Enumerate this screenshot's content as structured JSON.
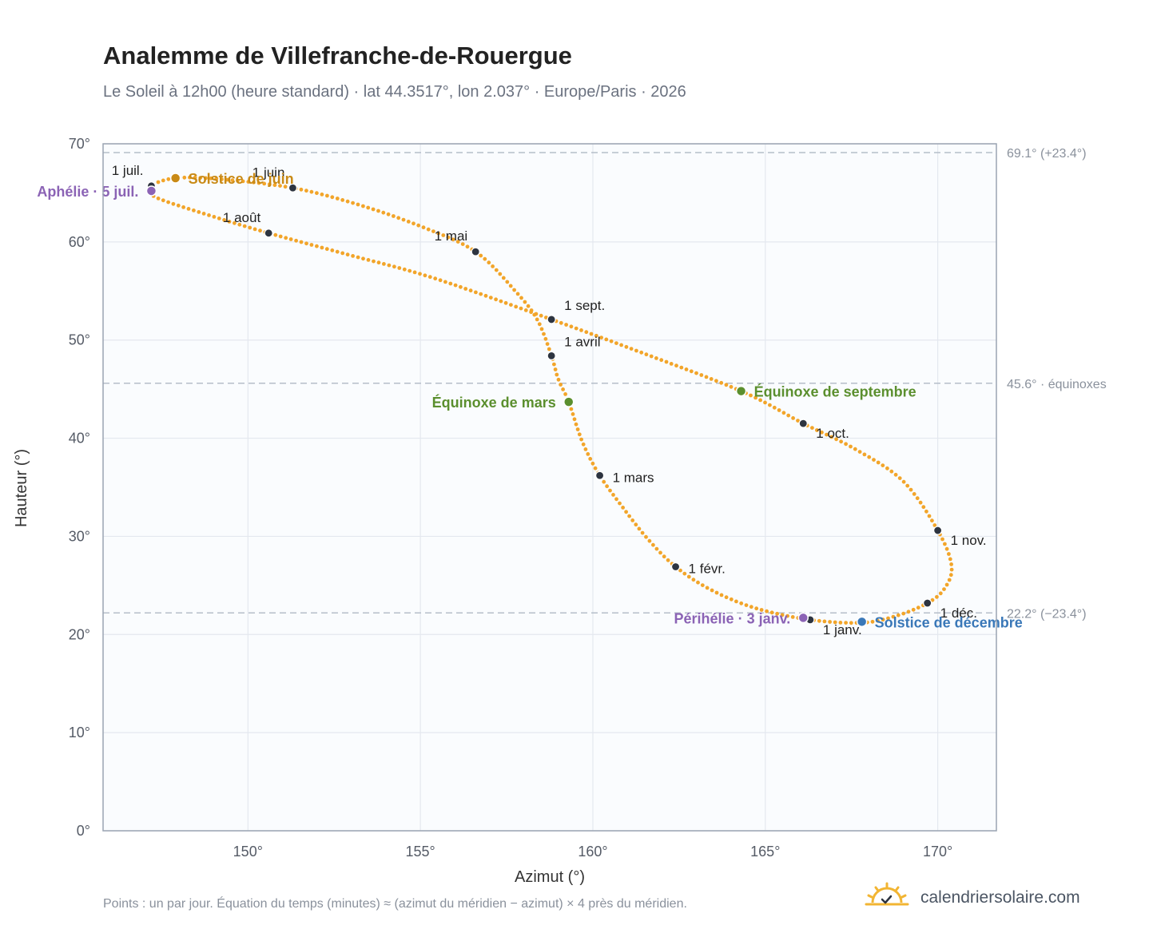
{
  "header": {
    "title": "Analemme de Villefranche-de-Rouergue",
    "subtitle": "Le Soleil à 12h00 (heure standard) · lat 44.3517°, lon 2.037° · Europe/Paris · 2026"
  },
  "footer": {
    "note": "Points : un par jour. Équation du temps (minutes) ≈ (azimut du méridien − azimut) × 4 près du méridien.",
    "brand": "calendriersolaire.com"
  },
  "colors": {
    "curve": "#f2a52a",
    "month_dot": "#2d3440",
    "equinox": "#5b8f2e",
    "june_solstice": "#c98a16",
    "december_solstice": "#3a78b8",
    "apsis": "#8b63b5",
    "grid": "#e4e8ef",
    "plot_bg": "#fafcfe",
    "ref_line": "#b5bec9"
  },
  "chart_data": {
    "type": "scatter",
    "xlabel": "Azimut (°)",
    "ylabel": "Hauteur (°)",
    "xlim": [
      145.8,
      171.7
    ],
    "ylim": [
      0,
      70
    ],
    "xticks": [
      {
        "value": 150,
        "label": "150°"
      },
      {
        "value": 155,
        "label": "155°"
      },
      {
        "value": 160,
        "label": "160°"
      },
      {
        "value": 165,
        "label": "165°"
      },
      {
        "value": 170,
        "label": "170°"
      }
    ],
    "yticks": [
      {
        "value": 0,
        "label": "0°"
      },
      {
        "value": 10,
        "label": "10°"
      },
      {
        "value": 20,
        "label": "20°"
      },
      {
        "value": 30,
        "label": "30°"
      },
      {
        "value": 40,
        "label": "40°"
      },
      {
        "value": 50,
        "label": "50°"
      },
      {
        "value": 60,
        "label": "60°"
      },
      {
        "value": 70,
        "label": "70°"
      }
    ],
    "grid": true,
    "reference_lines": [
      {
        "y": 69.1,
        "label": "69.1° (+23.4°)"
      },
      {
        "y": 45.6,
        "label": "45.6° · équinoxes"
      },
      {
        "y": 22.2,
        "label": "22.2° (−23.4°)"
      }
    ],
    "months": [
      {
        "label": "1 janv.",
        "x": 166.3,
        "y": 21.5,
        "label_side": "below-right"
      },
      {
        "label": "1 févr.",
        "x": 162.4,
        "y": 26.9,
        "label_side": "right"
      },
      {
        "label": "1 mars",
        "x": 160.2,
        "y": 36.2,
        "label_side": "right"
      },
      {
        "label": "1 avril",
        "x": 158.8,
        "y": 48.4,
        "label_side": "above-right"
      },
      {
        "label": "1 mai",
        "x": 156.6,
        "y": 59.0,
        "label_side": "above-left"
      },
      {
        "label": "1 juin",
        "x": 151.3,
        "y": 65.5,
        "label_side": "above-left"
      },
      {
        "label": "1 juil.",
        "x": 147.2,
        "y": 65.7,
        "label_side": "above-left"
      },
      {
        "label": "1 août",
        "x": 150.6,
        "y": 60.9,
        "label_side": "above-left"
      },
      {
        "label": "1 sept.",
        "x": 158.8,
        "y": 52.1,
        "label_side": "above-right"
      },
      {
        "label": "1 oct.",
        "x": 166.1,
        "y": 41.5,
        "label_side": "below-right"
      },
      {
        "label": "1 nov.",
        "x": 170.0,
        "y": 30.6,
        "label_side": "below-right"
      },
      {
        "label": "1 déc.",
        "x": 169.7,
        "y": 23.2,
        "label_side": "below-right"
      }
    ],
    "events": [
      {
        "label": "Solstice de juin",
        "x": 147.9,
        "y": 66.5,
        "color_key": "june_solstice",
        "label_side": "right"
      },
      {
        "label": "Aphélie · 5 juil.",
        "x": 147.2,
        "y": 65.2,
        "color_key": "apsis",
        "label_side": "left"
      },
      {
        "label": "Équinoxe de mars",
        "x": 159.3,
        "y": 43.7,
        "color_key": "equinox",
        "label_side": "left"
      },
      {
        "label": "Équinoxe de septembre",
        "x": 164.3,
        "y": 44.8,
        "color_key": "equinox",
        "label_side": "right"
      },
      {
        "label": "Périhélie · 3 janv.",
        "x": 166.1,
        "y": 21.7,
        "color_key": "apsis",
        "label_side": "left"
      },
      {
        "label": "Solstice de décembre",
        "x": 167.8,
        "y": 21.3,
        "color_key": "december_solstice",
        "label_side": "right"
      }
    ],
    "curve": [
      [
        167.8,
        21.2
      ],
      [
        166.3,
        21.5
      ],
      [
        164.7,
        22.7
      ],
      [
        163.4,
        24.6
      ],
      [
        162.4,
        26.9
      ],
      [
        161.6,
        29.7
      ],
      [
        160.9,
        32.8
      ],
      [
        160.2,
        36.2
      ],
      [
        159.7,
        39.6
      ],
      [
        159.3,
        43.7
      ],
      [
        159.0,
        46.0
      ],
      [
        158.8,
        48.4
      ],
      [
        158.4,
        52.0
      ],
      [
        157.8,
        54.8
      ],
      [
        156.6,
        59.0
      ],
      [
        155.0,
        61.6
      ],
      [
        153.2,
        63.8
      ],
      [
        151.3,
        65.5
      ],
      [
        149.2,
        66.4
      ],
      [
        147.9,
        66.5
      ],
      [
        147.2,
        65.7
      ],
      [
        147.3,
        64.6
      ],
      [
        148.8,
        62.8
      ],
      [
        150.6,
        60.9
      ],
      [
        152.8,
        58.8
      ],
      [
        155.4,
        56.3
      ],
      [
        158.8,
        52.1
      ],
      [
        161.2,
        49.0
      ],
      [
        164.3,
        44.8
      ],
      [
        166.1,
        41.5
      ],
      [
        167.6,
        38.9
      ],
      [
        169.0,
        35.6
      ],
      [
        170.0,
        30.6
      ],
      [
        170.4,
        27.0
      ],
      [
        170.2,
        24.7
      ],
      [
        169.7,
        23.2
      ],
      [
        168.8,
        21.9
      ]
    ]
  }
}
